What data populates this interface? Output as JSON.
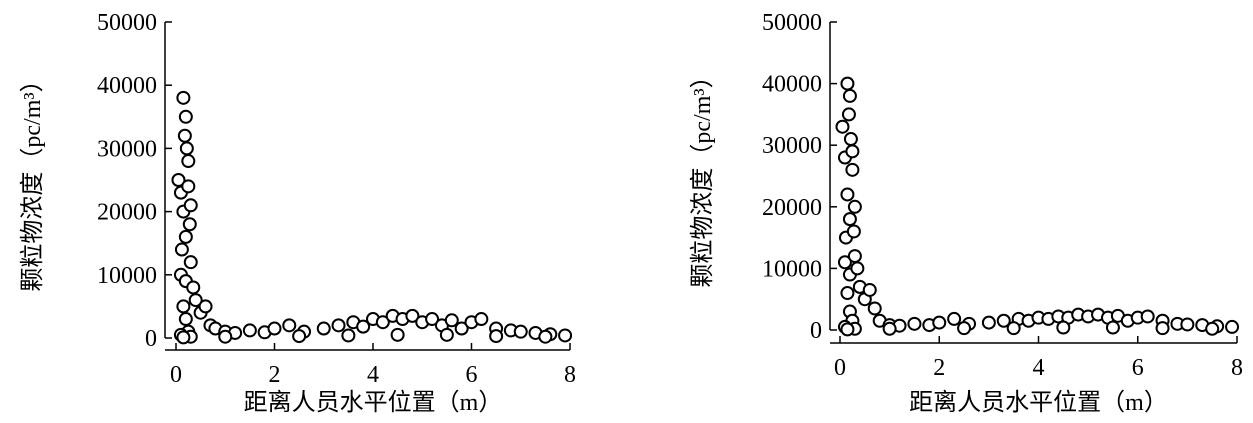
{
  "chart_data": [
    {
      "type": "scatter",
      "x_label": "距离人员水平位置（m）",
      "y_label": "颗粒物浓度（pc/m³）",
      "xlim": [
        0,
        8
      ],
      "xticks": [
        0,
        2,
        4,
        6,
        8
      ],
      "ylim": [
        0,
        50000
      ],
      "yticks": [
        0,
        10000,
        20000,
        30000,
        40000,
        50000
      ],
      "marker_color": "#000000",
      "x": [
        0.05,
        0.1,
        0.15,
        0.2,
        0.18,
        0.22,
        0.25,
        0.15,
        0.2,
        0.12,
        0.25,
        0.3,
        0.28,
        0.1,
        0.2,
        0.3,
        0.15,
        0.2,
        0.25,
        0.1,
        0.35,
        0.4,
        0.5,
        0.6,
        0.7,
        0.8,
        1.0,
        1.2,
        1.5,
        1.8,
        2.0,
        2.3,
        2.6,
        3.0,
        3.3,
        3.6,
        3.8,
        4.0,
        4.2,
        4.4,
        4.6,
        4.8,
        5.0,
        5.2,
        5.4,
        5.6,
        5.8,
        6.0,
        6.2,
        6.5,
        6.8,
        7.0,
        7.3,
        7.6,
        7.9,
        4.5,
        5.5,
        3.5,
        2.5,
        1.0,
        6.5,
        7.5,
        0.3,
        0.15
      ],
      "y": [
        25000,
        23000,
        38000,
        35000,
        32000,
        30000,
        28000,
        20000,
        16000,
        14000,
        24000,
        21000,
        18000,
        10000,
        9000,
        12000,
        5000,
        3000,
        1000,
        500,
        8000,
        6000,
        4000,
        5000,
        2000,
        1500,
        1000,
        800,
        1200,
        900,
        1500,
        2000,
        1000,
        1500,
        2000,
        2500,
        1800,
        3000,
        2500,
        3500,
        3000,
        3500,
        2500,
        3000,
        2000,
        2800,
        1500,
        2500,
        3000,
        1500,
        1200,
        1000,
        800,
        600,
        400,
        500,
        500,
        400,
        300,
        200,
        300,
        200,
        200,
        100
      ]
    },
    {
      "type": "scatter",
      "x_label": "距离人员水平位置（m）",
      "y_label": "颗粒物浓度（pc/m³）",
      "xlim": [
        0,
        8
      ],
      "xticks": [
        0,
        2,
        4,
        6,
        8
      ],
      "ylim": [
        0,
        50000
      ],
      "yticks": [
        0,
        10000,
        20000,
        30000,
        40000,
        50000
      ],
      "marker_color": "#000000",
      "x": [
        0.05,
        0.1,
        0.15,
        0.2,
        0.18,
        0.22,
        0.25,
        0.15,
        0.2,
        0.12,
        0.25,
        0.3,
        0.28,
        0.1,
        0.2,
        0.3,
        0.15,
        0.2,
        0.25,
        0.1,
        0.35,
        0.4,
        0.5,
        0.6,
        0.7,
        0.8,
        1.0,
        1.2,
        1.5,
        1.8,
        2.0,
        2.3,
        2.6,
        3.0,
        3.3,
        3.6,
        3.8,
        4.0,
        4.2,
        4.4,
        4.6,
        4.8,
        5.0,
        5.2,
        5.4,
        5.6,
        5.8,
        6.0,
        6.2,
        6.5,
        6.8,
        7.0,
        7.3,
        7.6,
        7.9,
        4.5,
        5.5,
        3.5,
        2.5,
        1.0,
        6.5,
        7.5,
        0.3,
        0.15
      ],
      "y": [
        33000,
        28000,
        40000,
        38000,
        35000,
        31000,
        29000,
        22000,
        18000,
        15000,
        26000,
        20000,
        16000,
        11000,
        9000,
        12000,
        6000,
        3000,
        1500,
        500,
        10000,
        7000,
        5000,
        6500,
        3500,
        1500,
        800,
        700,
        1000,
        800,
        1200,
        1800,
        1000,
        1200,
        1500,
        1800,
        1500,
        2000,
        1800,
        2200,
        2000,
        2500,
        2200,
        2500,
        2000,
        2300,
        1500,
        2000,
        2200,
        1500,
        1000,
        900,
        800,
        600,
        500,
        400,
        400,
        300,
        300,
        200,
        300,
        200,
        200,
        100
      ]
    }
  ]
}
